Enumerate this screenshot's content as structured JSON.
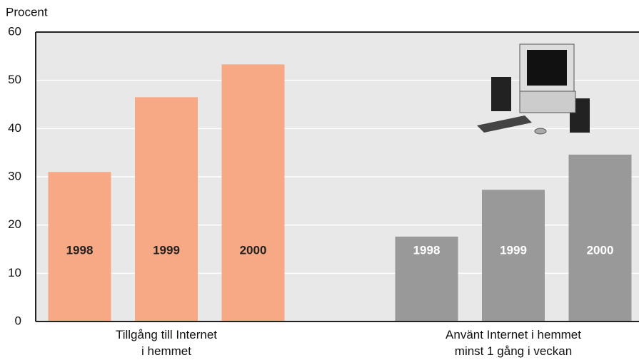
{
  "chart_data": {
    "type": "bar",
    "y_label": "Procent",
    "categories": [
      "Tillgång till Internet\ni hemmet",
      "Använt Internet i hemmet\nminst 1 gång i veckan"
    ],
    "category_colors": [
      "#f7a986",
      "#999999"
    ],
    "label_colors": [
      "#222222",
      "#ffffff"
    ],
    "series": [
      {
        "name": "1998",
        "values": [
          31,
          17.6
        ]
      },
      {
        "name": "1999",
        "values": [
          46.5,
          27.3
        ]
      },
      {
        "name": "2000",
        "values": [
          53.3,
          34.6
        ]
      }
    ],
    "ylim": [
      0,
      60
    ],
    "yticks": [
      0,
      10,
      20,
      30,
      40,
      50,
      60
    ],
    "grid": true
  }
}
